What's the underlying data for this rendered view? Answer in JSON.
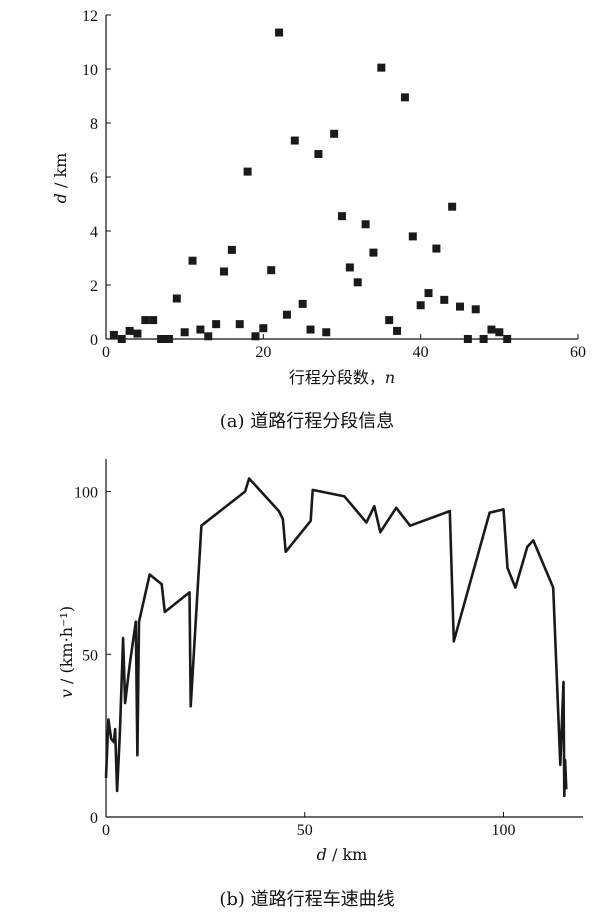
{
  "chart_data": [
    {
      "type": "scatter",
      "caption": "(a) 道路行程分段信息",
      "xlabel": "行程分段数，n",
      "ylabel": "d / km",
      "xlim": [
        0,
        60
      ],
      "ylim": [
        0,
        12
      ],
      "xticks": [
        "0",
        "20",
        "40",
        "60"
      ],
      "yticks": [
        "0",
        "2",
        "4",
        "6",
        "8",
        "10",
        "12"
      ],
      "marker": "square",
      "color": "#1a1a1a",
      "points": [
        [
          1,
          0.15
        ],
        [
          2,
          0.0
        ],
        [
          3,
          0.3
        ],
        [
          4,
          0.2
        ],
        [
          5,
          0.7
        ],
        [
          6,
          0.7
        ],
        [
          7,
          0.0
        ],
        [
          8,
          0.0
        ],
        [
          9,
          1.5
        ],
        [
          10,
          0.25
        ],
        [
          11,
          2.9
        ],
        [
          12,
          0.35
        ],
        [
          13,
          0.1
        ],
        [
          14,
          0.55
        ],
        [
          15,
          2.5
        ],
        [
          16,
          3.3
        ],
        [
          17,
          0.55
        ],
        [
          18,
          6.2
        ],
        [
          19,
          0.1
        ],
        [
          20,
          0.4
        ],
        [
          21,
          2.55
        ],
        [
          22,
          11.35
        ],
        [
          23,
          0.9
        ],
        [
          24,
          7.35
        ],
        [
          25,
          1.3
        ],
        [
          26,
          0.35
        ],
        [
          27,
          6.85
        ],
        [
          28,
          0.25
        ],
        [
          29,
          7.6
        ],
        [
          30,
          4.55
        ],
        [
          31,
          2.65
        ],
        [
          32,
          2.1
        ],
        [
          33,
          4.25
        ],
        [
          34,
          3.2
        ],
        [
          35,
          10.05
        ],
        [
          36,
          0.7
        ],
        [
          37,
          0.3
        ],
        [
          38,
          8.95
        ],
        [
          39,
          3.8
        ],
        [
          40,
          1.25
        ],
        [
          41,
          1.7
        ],
        [
          42,
          3.35
        ],
        [
          43,
          1.45
        ],
        [
          44,
          4.9
        ],
        [
          45,
          1.2
        ],
        [
          46,
          0.0
        ],
        [
          47,
          1.1
        ],
        [
          48,
          0.0
        ],
        [
          49,
          0.35
        ],
        [
          50,
          0.25
        ],
        [
          51,
          0.0
        ]
      ]
    },
    {
      "type": "line",
      "caption": "(b) 道路行程车速曲线",
      "xlabel": "d / km",
      "ylabel": "v / (km·h⁻¹)",
      "xlim": [
        0,
        120
      ],
      "ylim": [
        0,
        110
      ],
      "xticks": [
        "0",
        "50",
        "100"
      ],
      "yticks": [
        "0",
        "50",
        "100"
      ],
      "color": "#1a1a1a",
      "points": [
        [
          0.0,
          12
        ],
        [
          0.6,
          30
        ],
        [
          1.3,
          24
        ],
        [
          2.0,
          23
        ],
        [
          2.3,
          27
        ],
        [
          2.8,
          8
        ],
        [
          3.5,
          26
        ],
        [
          4.3,
          55
        ],
        [
          4.8,
          35
        ],
        [
          6.0,
          47
        ],
        [
          7.5,
          60
        ],
        [
          7.9,
          19
        ],
        [
          8.3,
          60
        ],
        [
          11,
          74.5
        ],
        [
          14,
          71.5
        ],
        [
          14.8,
          63
        ],
        [
          21,
          69
        ],
        [
          21.3,
          34
        ],
        [
          24,
          89.5
        ],
        [
          35,
          100
        ],
        [
          36,
          104
        ],
        [
          43.5,
          94
        ],
        [
          44.5,
          91.5
        ],
        [
          45.2,
          81.5
        ],
        [
          51.5,
          91
        ],
        [
          52,
          100.5
        ],
        [
          60,
          98.5
        ],
        [
          65.5,
          90.5
        ],
        [
          67.5,
          95.5
        ],
        [
          69,
          87.5
        ],
        [
          73,
          95
        ],
        [
          76.5,
          89.5
        ],
        [
          86.5,
          94
        ],
        [
          87.5,
          54
        ],
        [
          96.5,
          93.5
        ],
        [
          100,
          94.5
        ],
        [
          101,
          76.5
        ],
        [
          103,
          70.5
        ],
        [
          106,
          83
        ],
        [
          107.5,
          85
        ],
        [
          112.5,
          70.5
        ],
        [
          114.3,
          16
        ],
        [
          115.1,
          41.5
        ],
        [
          115.3,
          6.5
        ],
        [
          115.5,
          17.5
        ],
        [
          115.8,
          8.5
        ]
      ]
    }
  ]
}
